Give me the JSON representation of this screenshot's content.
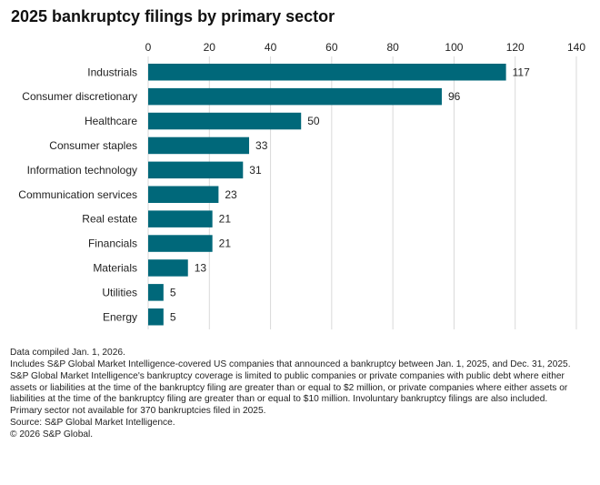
{
  "title": "2025 bankruptcy filings by primary sector",
  "colors": {
    "bar": "#00687A",
    "grid": "#D9D9D9",
    "text": "#222222"
  },
  "chart_data": {
    "type": "bar",
    "orientation": "horizontal",
    "categories": [
      "Industrials",
      "Consumer discretionary",
      "Healthcare",
      "Consumer staples",
      "Information technology",
      "Communication services",
      "Real estate",
      "Financials",
      "Materials",
      "Utilities",
      "Energy"
    ],
    "values": [
      117,
      96,
      50,
      33,
      31,
      23,
      21,
      21,
      13,
      5,
      5
    ],
    "xlim": [
      0,
      140
    ],
    "xticks": [
      0,
      20,
      40,
      60,
      80,
      100,
      120,
      140
    ],
    "xaxis_position": "top",
    "grid": true,
    "data_labels": true
  },
  "notes": [
    "Data compiled Jan. 1, 2026.",
    "Includes S&P Global Market Intelligence-covered US companies that announced a bankruptcy between Jan. 1, 2025, and Dec. 31, 2025.",
    "S&P Global Market Intelligence's bankruptcy coverage is limited to public companies or private companies with public debt where either assets or liabilities at the time of the bankruptcy filing are greater than or equal to $2 million, or private companies where either assets or liabilities at the time of the bankruptcy filing are greater than or equal to $10 million. Involuntary bankruptcy filings are also included.",
    "Primary sector not available for 370 bankruptcies filed in 2025.",
    "Source: S&P Global Market Intelligence.",
    "© 2026 S&P Global."
  ]
}
